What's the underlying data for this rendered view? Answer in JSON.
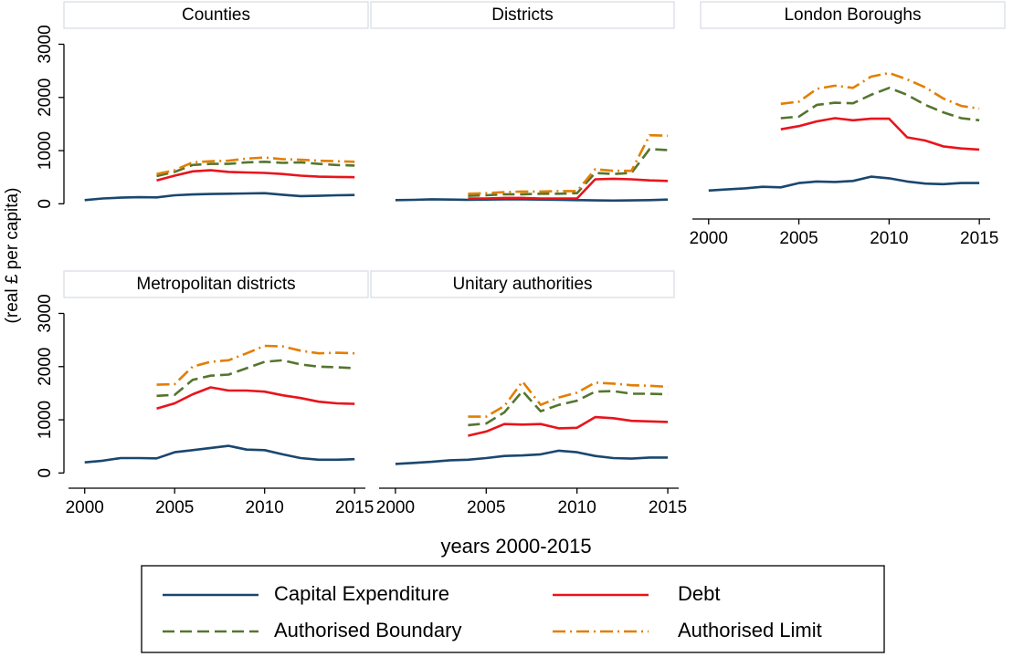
{
  "y_label": "(real £ per capita)",
  "x_label": "years 2000-2015",
  "legend": [
    {
      "name": "Capital Expenditure",
      "color": "#1a476f",
      "dash": "solid"
    },
    {
      "name": "Debt",
      "color": "#e8141c",
      "dash": "solid"
    },
    {
      "name": "Authorised Boundary",
      "color": "#55752f",
      "dash": "dash"
    },
    {
      "name": "Authorised Limit",
      "color": "#e37e00",
      "dash": "dashdot"
    }
  ],
  "chart_data": [
    {
      "type": "line",
      "title": "Counties",
      "x": [
        2000,
        2001,
        2002,
        2003,
        2004,
        2005,
        2006,
        2007,
        2008,
        2009,
        2010,
        2011,
        2012,
        2013,
        2014,
        2015
      ],
      "xlim": [
        1999.1,
        2015.6
      ],
      "ylim": [
        -200,
        3300
      ],
      "yticks": [
        0,
        1000,
        2000,
        3000
      ],
      "series": [
        {
          "values": [
            70,
            100,
            115,
            125,
            120,
            160,
            175,
            185,
            190,
            195,
            200,
            170,
            145,
            150,
            160,
            165
          ]
        },
        {
          "values": [
            null,
            null,
            null,
            null,
            440,
            530,
            610,
            630,
            600,
            590,
            580,
            560,
            530,
            510,
            505,
            500
          ]
        },
        {
          "values": [
            null,
            null,
            null,
            null,
            520,
            600,
            730,
            750,
            750,
            780,
            790,
            770,
            780,
            750,
            730,
            720
          ]
        },
        {
          "values": [
            null,
            null,
            null,
            null,
            560,
            630,
            780,
            800,
            810,
            850,
            870,
            840,
            830,
            810,
            800,
            790
          ]
        }
      ]
    },
    {
      "type": "line",
      "title": "Districts",
      "x": [
        2000,
        2001,
        2002,
        2003,
        2004,
        2005,
        2006,
        2007,
        2008,
        2009,
        2010,
        2011,
        2012,
        2013,
        2014,
        2015
      ],
      "xlim": [
        1999.1,
        2015.6
      ],
      "ylim": [
        -200,
        3300
      ],
      "series": [
        {
          "values": [
            70,
            75,
            85,
            80,
            75,
            80,
            85,
            85,
            80,
            75,
            70,
            65,
            60,
            65,
            70,
            80
          ]
        },
        {
          "values": [
            null,
            null,
            null,
            null,
            100,
            100,
            110,
            110,
            100,
            100,
            100,
            460,
            470,
            460,
            440,
            430
          ]
        },
        {
          "values": [
            null,
            null,
            null,
            null,
            150,
            160,
            180,
            180,
            190,
            190,
            200,
            580,
            560,
            580,
            1030,
            1010
          ]
        },
        {
          "values": [
            null,
            null,
            null,
            null,
            190,
            200,
            220,
            230,
            230,
            240,
            240,
            650,
            620,
            620,
            1290,
            1280
          ]
        }
      ]
    },
    {
      "type": "line",
      "title": "London Boroughs",
      "x": [
        2000,
        2001,
        2002,
        2003,
        2004,
        2005,
        2006,
        2007,
        2008,
        2009,
        2010,
        2011,
        2012,
        2013,
        2014,
        2015
      ],
      "xlim": [
        1999.1,
        2015.6
      ],
      "ylim": [
        -200,
        3300
      ],
      "xticks": [
        2000,
        2005,
        2010,
        2015
      ],
      "series": [
        {
          "values": [
            250,
            270,
            290,
            320,
            310,
            390,
            420,
            410,
            430,
            510,
            480,
            420,
            380,
            370,
            390,
            390
          ]
        },
        {
          "values": [
            null,
            null,
            null,
            null,
            1400,
            1460,
            1550,
            1610,
            1570,
            1600,
            1600,
            1250,
            1190,
            1080,
            1040,
            1020
          ]
        },
        {
          "values": [
            null,
            null,
            null,
            null,
            1610,
            1640,
            1860,
            1900,
            1890,
            2050,
            2180,
            2050,
            1860,
            1720,
            1610,
            1570
          ]
        },
        {
          "values": [
            null,
            null,
            null,
            null,
            1880,
            1920,
            2160,
            2220,
            2180,
            2390,
            2460,
            2340,
            2190,
            1980,
            1840,
            1790
          ]
        }
      ]
    },
    {
      "type": "line",
      "title": "Metropolitan districts",
      "x": [
        2000,
        2001,
        2002,
        2003,
        2004,
        2005,
        2006,
        2007,
        2008,
        2009,
        2010,
        2011,
        2012,
        2013,
        2014,
        2015
      ],
      "xlim": [
        1999.1,
        2015.6
      ],
      "ylim": [
        -200,
        3300
      ],
      "xticks": [
        2000,
        2005,
        2010,
        2015
      ],
      "yticks": [
        0,
        1000,
        2000,
        3000
      ],
      "series": [
        {
          "values": [
            200,
            230,
            280,
            280,
            275,
            390,
            430,
            470,
            510,
            440,
            430,
            350,
            280,
            250,
            250,
            260
          ]
        },
        {
          "values": [
            null,
            null,
            null,
            null,
            1210,
            1310,
            1480,
            1610,
            1550,
            1550,
            1530,
            1460,
            1410,
            1340,
            1310,
            1300
          ]
        },
        {
          "values": [
            null,
            null,
            null,
            null,
            1450,
            1470,
            1750,
            1830,
            1850,
            1970,
            2090,
            2120,
            2040,
            2000,
            1990,
            1970
          ]
        },
        {
          "values": [
            null,
            null,
            null,
            null,
            1660,
            1670,
            2000,
            2090,
            2120,
            2250,
            2390,
            2380,
            2300,
            2250,
            2260,
            2250
          ]
        }
      ]
    },
    {
      "type": "line",
      "title": "Unitary authorities",
      "x": [
        2000,
        2001,
        2002,
        2003,
        2004,
        2005,
        2006,
        2007,
        2008,
        2009,
        2010,
        2011,
        2012,
        2013,
        2014,
        2015
      ],
      "xlim": [
        1999.1,
        2015.6
      ],
      "ylim": [
        -200,
        3300
      ],
      "xticks": [
        2000,
        2005,
        2010,
        2015
      ],
      "series": [
        {
          "values": [
            170,
            190,
            210,
            240,
            250,
            280,
            320,
            330,
            350,
            420,
            390,
            320,
            280,
            270,
            290,
            290
          ]
        },
        {
          "values": [
            null,
            null,
            null,
            null,
            700,
            780,
            920,
            910,
            920,
            840,
            850,
            1050,
            1030,
            980,
            970,
            960
          ]
        },
        {
          "values": [
            null,
            null,
            null,
            null,
            900,
            930,
            1140,
            1540,
            1160,
            1280,
            1360,
            1530,
            1540,
            1490,
            1490,
            1480
          ]
        },
        {
          "values": [
            null,
            null,
            null,
            null,
            1060,
            1060,
            1260,
            1720,
            1280,
            1420,
            1510,
            1700,
            1680,
            1650,
            1640,
            1620
          ]
        }
      ]
    }
  ]
}
